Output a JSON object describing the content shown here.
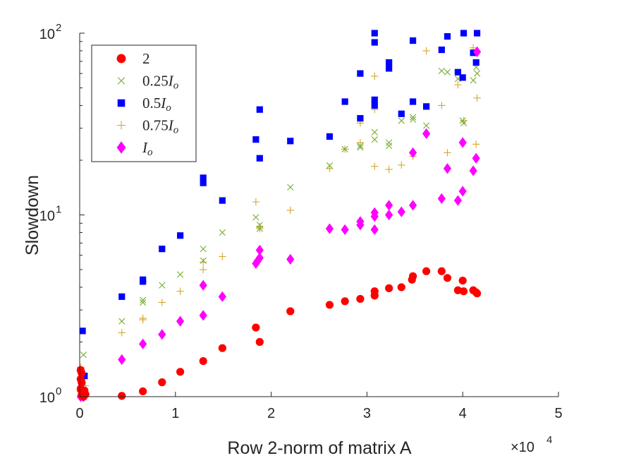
{
  "chart_data": {
    "type": "scatter",
    "xlabel": "Row 2-norm of matrix A",
    "ylabel": "Slowdown",
    "xlim": [
      0,
      5
    ],
    "ylim_exponent": [
      0,
      2
    ],
    "x_exponent_label": "×10",
    "x_exponent_value": "4",
    "y_scale": "log",
    "x_ticks": [
      "0",
      "1",
      "2",
      "3",
      "4",
      "5"
    ],
    "y_ticks": [
      {
        "base": "10",
        "exp": "0"
      },
      {
        "base": "10",
        "exp": "1"
      },
      {
        "base": "10",
        "exp": "2"
      }
    ],
    "grid": false,
    "legend_placement": "top-left",
    "series": [
      {
        "name": "2",
        "legend": [
          {
            "t": "2",
            "i": false
          }
        ],
        "marker": "circle",
        "color": "#ff0000",
        "points": [
          [
            0.01,
            1.4
          ],
          [
            0.02,
            1.35
          ],
          [
            0.01,
            1.25
          ],
          [
            0.02,
            1.2
          ],
          [
            0.01,
            1.1
          ],
          [
            0.03,
            1.05
          ],
          [
            0.02,
            1.02
          ],
          [
            0.04,
            1.0
          ],
          [
            0.05,
            1.08
          ],
          [
            0.06,
            1.03
          ],
          [
            0.44,
            1.01
          ],
          [
            0.66,
            1.07
          ],
          [
            0.86,
            1.2
          ],
          [
            1.05,
            1.37
          ],
          [
            1.29,
            1.57
          ],
          [
            1.49,
            1.85
          ],
          [
            1.84,
            2.4
          ],
          [
            1.88,
            2.0
          ],
          [
            2.2,
            2.95
          ],
          [
            2.61,
            3.2
          ],
          [
            2.77,
            3.35
          ],
          [
            2.93,
            3.45
          ],
          [
            3.08,
            3.6
          ],
          [
            3.08,
            3.8
          ],
          [
            3.23,
            3.95
          ],
          [
            3.36,
            4.0
          ],
          [
            3.47,
            4.4
          ],
          [
            3.48,
            4.6
          ],
          [
            3.62,
            4.9
          ],
          [
            3.78,
            4.9
          ],
          [
            3.84,
            4.5
          ],
          [
            3.95,
            3.85
          ],
          [
            4.0,
            4.35
          ],
          [
            4.01,
            3.8
          ],
          [
            4.11,
            3.85
          ],
          [
            4.14,
            3.75
          ],
          [
            4.15,
            3.7
          ]
        ]
      },
      {
        "name": "0.25Io",
        "legend": [
          {
            "t": "0.25",
            "i": false
          },
          {
            "t": "I",
            "i": true
          },
          {
            "t": "o",
            "i": true,
            "sub": true
          }
        ],
        "marker": "x",
        "color": "#77ac30",
        "points": [
          [
            0.01,
            1.05
          ],
          [
            0.03,
            1.3
          ],
          [
            0.04,
            1.7
          ],
          [
            0.02,
            1.15
          ],
          [
            0.44,
            2.6
          ],
          [
            0.66,
            3.3
          ],
          [
            0.66,
            3.4
          ],
          [
            0.86,
            4.1
          ],
          [
            1.05,
            4.7
          ],
          [
            1.29,
            5.6
          ],
          [
            1.29,
            6.5
          ],
          [
            1.49,
            8.0
          ],
          [
            1.84,
            9.7
          ],
          [
            1.88,
            8.8
          ],
          [
            1.88,
            8.4
          ],
          [
            2.2,
            14.2
          ],
          [
            2.61,
            18.7
          ],
          [
            2.77,
            23.0
          ],
          [
            2.93,
            24.0
          ],
          [
            2.93,
            23.5
          ],
          [
            3.08,
            26.0
          ],
          [
            3.08,
            28.5
          ],
          [
            3.23,
            24.0
          ],
          [
            3.23,
            25.0
          ],
          [
            3.36,
            33.0
          ],
          [
            3.48,
            33.5
          ],
          [
            3.48,
            34.5
          ],
          [
            3.62,
            31.0
          ],
          [
            3.78,
            62.0
          ],
          [
            3.84,
            61.0
          ],
          [
            3.95,
            56.0
          ],
          [
            4.0,
            33.0
          ],
          [
            4.01,
            32.0
          ],
          [
            4.11,
            55.0
          ],
          [
            4.14,
            65.0
          ],
          [
            4.15,
            60.0
          ]
        ]
      },
      {
        "name": "0.5Io",
        "legend": [
          {
            "t": "0.5",
            "i": false
          },
          {
            "t": "I",
            "i": true
          },
          {
            "t": "o",
            "i": true,
            "sub": true
          }
        ],
        "marker": "square",
        "color": "#0000ff",
        "points": [
          [
            0.01,
            1.1
          ],
          [
            0.02,
            1.2
          ],
          [
            0.03,
            2.3
          ],
          [
            0.05,
            1.3
          ],
          [
            0.44,
            3.55
          ],
          [
            0.66,
            4.4
          ],
          [
            0.66,
            4.3
          ],
          [
            0.86,
            6.5
          ],
          [
            1.05,
            7.7
          ],
          [
            1.29,
            15.0
          ],
          [
            1.29,
            16.0
          ],
          [
            1.49,
            12.0
          ],
          [
            1.84,
            26.0
          ],
          [
            1.88,
            38.0
          ],
          [
            1.88,
            20.5
          ],
          [
            2.2,
            25.5
          ],
          [
            2.61,
            27.0
          ],
          [
            2.77,
            42.0
          ],
          [
            2.93,
            60.0
          ],
          [
            2.93,
            34.0
          ],
          [
            3.08,
            100.0
          ],
          [
            3.08,
            89.0
          ],
          [
            3.08,
            40.0
          ],
          [
            3.08,
            43.0
          ],
          [
            3.23,
            64.0
          ],
          [
            3.23,
            69.0
          ],
          [
            3.36,
            36.0
          ],
          [
            3.48,
            91.0
          ],
          [
            3.48,
            42.0
          ],
          [
            3.62,
            39.5
          ],
          [
            3.78,
            81.0
          ],
          [
            3.84,
            96.0
          ],
          [
            3.95,
            61.0
          ],
          [
            4.0,
            57.0
          ],
          [
            4.01,
            100.0
          ],
          [
            4.11,
            78.0
          ],
          [
            4.14,
            69.0
          ],
          [
            4.15,
            100.0
          ]
        ]
      },
      {
        "name": "0.75Io",
        "legend": [
          {
            "t": "0.75",
            "i": false
          },
          {
            "t": "I",
            "i": true
          },
          {
            "t": "o",
            "i": true,
            "sub": true
          }
        ],
        "marker": "plus",
        "color": "#d4a62a",
        "points": [
          [
            0.01,
            1.45
          ],
          [
            0.02,
            1.1
          ],
          [
            0.04,
            1.05
          ],
          [
            0.06,
            1.15
          ],
          [
            0.44,
            2.25
          ],
          [
            0.66,
            2.7
          ],
          [
            0.66,
            2.65
          ],
          [
            0.86,
            3.3
          ],
          [
            1.05,
            3.8
          ],
          [
            1.29,
            5.0
          ],
          [
            1.29,
            5.5
          ],
          [
            1.49,
            5.9
          ],
          [
            1.84,
            11.8
          ],
          [
            1.88,
            8.4
          ],
          [
            1.88,
            8.6
          ],
          [
            2.2,
            10.6
          ],
          [
            2.61,
            18.0
          ],
          [
            2.77,
            23.0
          ],
          [
            2.93,
            25.0
          ],
          [
            2.93,
            32.0
          ],
          [
            3.08,
            58.0
          ],
          [
            3.08,
            38.0
          ],
          [
            3.08,
            18.5
          ],
          [
            3.23,
            17.8
          ],
          [
            3.36,
            18.8
          ],
          [
            3.48,
            21.0
          ],
          [
            3.62,
            80.0
          ],
          [
            3.78,
            40.0
          ],
          [
            3.84,
            22.0
          ],
          [
            3.95,
            52.0
          ],
          [
            4.01,
            33.0
          ],
          [
            4.11,
            83.0
          ],
          [
            4.14,
            24.5
          ],
          [
            4.15,
            44.0
          ]
        ]
      },
      {
        "name": "Io",
        "legend": [
          {
            "t": "I",
            "i": true
          },
          {
            "t": "o",
            "i": true,
            "sub": true
          }
        ],
        "marker": "diamond",
        "color": "#ff00ff",
        "points": [
          [
            0.01,
            1.0
          ],
          [
            0.02,
            1.02
          ],
          [
            0.03,
            1.01
          ],
          [
            0.04,
            1.0
          ],
          [
            0.44,
            1.6
          ],
          [
            0.66,
            1.95
          ],
          [
            0.86,
            2.2
          ],
          [
            1.05,
            2.6
          ],
          [
            1.29,
            2.8
          ],
          [
            1.29,
            4.1
          ],
          [
            1.49,
            3.55
          ],
          [
            1.84,
            5.4
          ],
          [
            1.86,
            5.6
          ],
          [
            1.88,
            6.4
          ],
          [
            1.88,
            5.8
          ],
          [
            2.2,
            5.7
          ],
          [
            2.61,
            8.4
          ],
          [
            2.77,
            8.3
          ],
          [
            2.93,
            8.8
          ],
          [
            2.93,
            9.2
          ],
          [
            3.08,
            8.3
          ],
          [
            3.08,
            9.8
          ],
          [
            3.08,
            10.3
          ],
          [
            3.23,
            10.0
          ],
          [
            3.23,
            11.3
          ],
          [
            3.36,
            10.4
          ],
          [
            3.48,
            11.3
          ],
          [
            3.48,
            22.0
          ],
          [
            3.62,
            28.0
          ],
          [
            3.78,
            12.3
          ],
          [
            3.84,
            18.0
          ],
          [
            3.95,
            12.0
          ],
          [
            4.0,
            13.5
          ],
          [
            4.0,
            25.0
          ],
          [
            4.11,
            17.5
          ],
          [
            4.14,
            20.5
          ],
          [
            4.15,
            79.0
          ]
        ]
      }
    ]
  }
}
